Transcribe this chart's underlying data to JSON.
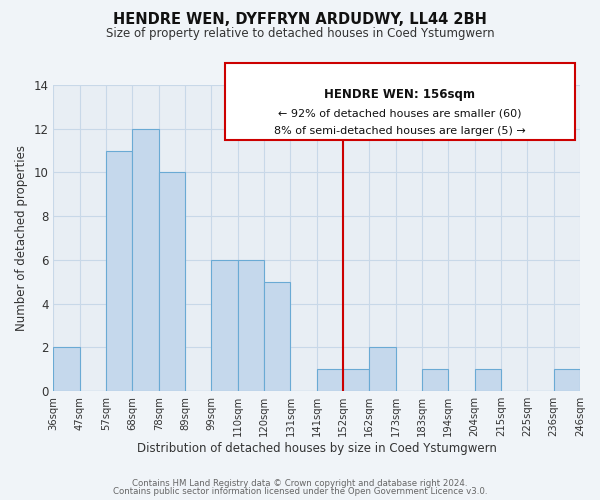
{
  "title": "HENDRE WEN, DYFFRYN ARDUDWY, LL44 2BH",
  "subtitle": "Size of property relative to detached houses in Coed Ystumgwern",
  "xlabel": "Distribution of detached houses by size in Coed Ystumgwern",
  "ylabel": "Number of detached properties",
  "footer_line1": "Contains HM Land Registry data © Crown copyright and database right 2024.",
  "footer_line2": "Contains public sector information licensed under the Open Government Licence v3.0.",
  "bins": [
    "36sqm",
    "47sqm",
    "57sqm",
    "68sqm",
    "78sqm",
    "89sqm",
    "99sqm",
    "110sqm",
    "120sqm",
    "131sqm",
    "141sqm",
    "152sqm",
    "162sqm",
    "173sqm",
    "183sqm",
    "194sqm",
    "204sqm",
    "215sqm",
    "225sqm",
    "236sqm",
    "246sqm"
  ],
  "bar_values": [
    2,
    0,
    11,
    12,
    10,
    0,
    6,
    6,
    5,
    0,
    1,
    1,
    2,
    0,
    1,
    0,
    1,
    0,
    0,
    1
  ],
  "bar_color": "#c5d8ec",
  "bar_edge_color": "#6aaad4",
  "vline_x": 11,
  "vline_color": "#cc0000",
  "annotation_title": "HENDRE WEN: 156sqm",
  "annotation_line1": "← 92% of detached houses are smaller (60)",
  "annotation_line2": "8% of semi-detached houses are larger (5) →",
  "ylim": [
    0,
    14
  ],
  "yticks": [
    0,
    2,
    4,
    6,
    8,
    10,
    12,
    14
  ],
  "xlim": [
    0,
    20
  ],
  "background_color": "#f0f4f8",
  "plot_bg_color": "#e8eef4",
  "grid_color": "#c8d8e8"
}
